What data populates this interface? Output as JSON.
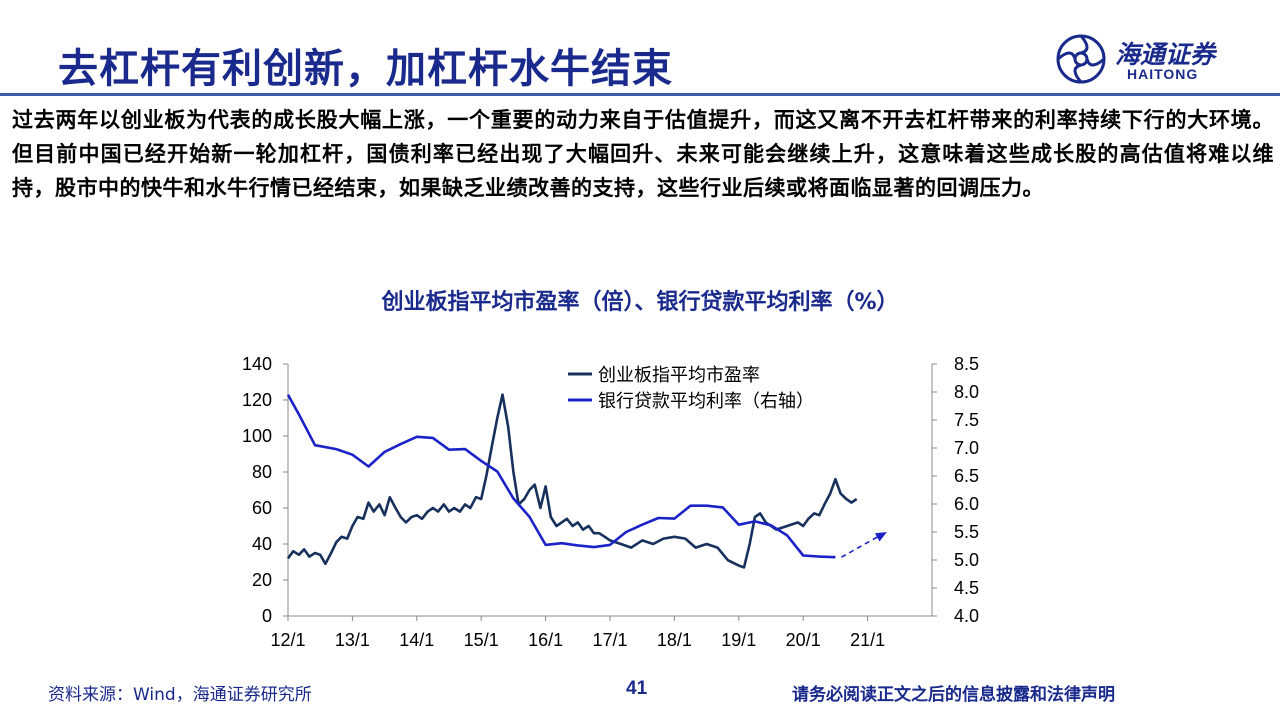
{
  "slide": {
    "title": "去杠杆有利创新，加杠杆水牛结束",
    "paragraph": "过去两年以创业板为代表的成长股大幅上涨，一个重要的动力来自于估值提升，而这又离不开去杠杆带来的利率持续下行的大环境。但目前中国已经开始新一轮加杠杆，国债利率已经出现了大幅回升、未来可能会继续上升，这意味着这些成长股的高估值将难以维持，股市中的快牛和水牛行情已经结束，如果缺乏业绩改善的支持，这些行业后续或将面临显著的回调压力。"
  },
  "logo": {
    "name_cn": "海通证券",
    "name_en": "HAITONG"
  },
  "footer": {
    "source": "资料来源：Wind，海通证券研究所",
    "page_number": "41",
    "disclaimer": "请务必阅读正文之后的信息披露和法律声明"
  },
  "colors": {
    "brand": "#1a2a8c",
    "pe_line": "#17305c",
    "rate_line": "#1b23c8"
  },
  "chart_data": {
    "type": "line",
    "title": "创业板指平均市盈率（倍）、银行贷款平均利率（%）",
    "x_ticks": [
      "12/1",
      "13/1",
      "14/1",
      "15/1",
      "16/1",
      "17/1",
      "18/1",
      "19/1",
      "20/1",
      "21/1"
    ],
    "x_range": [
      2012.0,
      2021.0
    ],
    "y_left": {
      "min": 0,
      "max": 140,
      "ticks": [
        "0",
        "20",
        "40",
        "60",
        "80",
        "100",
        "120",
        "140"
      ]
    },
    "y_right": {
      "min": 4.0,
      "max": 8.5,
      "ticks": [
        "4.0",
        "4.5",
        "5.0",
        "5.5",
        "6.0",
        "6.5",
        "7.0",
        "7.5",
        "8.0",
        "8.5"
      ]
    },
    "legend_position": "top-center",
    "series": [
      {
        "name": "创业板指平均市盈率",
        "axis": "left",
        "x": [
          2012.0,
          2012.08,
          2012.17,
          2012.25,
          2012.33,
          2012.42,
          2012.5,
          2012.58,
          2012.67,
          2012.75,
          2012.83,
          2012.92,
          2013.0,
          2013.08,
          2013.17,
          2013.25,
          2013.33,
          2013.42,
          2013.5,
          2013.58,
          2013.67,
          2013.75,
          2013.83,
          2013.92,
          2014.0,
          2014.08,
          2014.17,
          2014.25,
          2014.33,
          2014.42,
          2014.5,
          2014.58,
          2014.67,
          2014.75,
          2014.83,
          2014.92,
          2015.0,
          2015.08,
          2015.17,
          2015.25,
          2015.33,
          2015.42,
          2015.5,
          2015.58,
          2015.67,
          2015.75,
          2015.83,
          2015.92,
          2016.0,
          2016.08,
          2016.17,
          2016.25,
          2016.33,
          2016.42,
          2016.5,
          2016.58,
          2016.67,
          2016.75,
          2016.83,
          2016.92,
          2017.0,
          2017.17,
          2017.33,
          2017.5,
          2017.67,
          2017.83,
          2018.0,
          2018.17,
          2018.33,
          2018.5,
          2018.67,
          2018.83,
          2019.0,
          2019.08,
          2019.17,
          2019.25,
          2019.33,
          2019.42,
          2019.58,
          2019.75,
          2019.92,
          2020.0,
          2020.08,
          2020.17,
          2020.25,
          2020.33,
          2020.42,
          2020.5,
          2020.58,
          2020.67,
          2020.75,
          2020.83
        ],
        "values": [
          32,
          36,
          34,
          37,
          33,
          35,
          34,
          29,
          35,
          41,
          44,
          43,
          50,
          55,
          54,
          63,
          58,
          62,
          56,
          66,
          60,
          55,
          52,
          55,
          56,
          54,
          58,
          60,
          58,
          62,
          58,
          60,
          58,
          62,
          60,
          66,
          65,
          78,
          95,
          110,
          123,
          105,
          80,
          62,
          65,
          70,
          73,
          60,
          72,
          55,
          50,
          52,
          54,
          50,
          52,
          48,
          50,
          46,
          46,
          44,
          42,
          40,
          38,
          42,
          40,
          43,
          44,
          43,
          38,
          40,
          38,
          31,
          28,
          27,
          40,
          55,
          57,
          52,
          48,
          50,
          52,
          50,
          54,
          57,
          56,
          62,
          68,
          76,
          68,
          65,
          63,
          65
        ]
      },
      {
        "name": "银行贷款平均利率（右轴）",
        "axis": "right",
        "x": [
          2012.0,
          2012.17,
          2012.42,
          2012.75,
          2013.0,
          2013.25,
          2013.5,
          2013.75,
          2014.0,
          2014.25,
          2014.5,
          2014.75,
          2015.0,
          2015.25,
          2015.5,
          2015.75,
          2016.0,
          2016.25,
          2016.5,
          2016.75,
          2017.0,
          2017.25,
          2017.5,
          2017.75,
          2018.0,
          2018.25,
          2018.5,
          2018.75,
          2019.0,
          2019.25,
          2019.5,
          2019.75,
          2020.0,
          2020.25,
          2020.5
        ],
        "values": [
          7.95,
          7.6,
          7.05,
          6.98,
          6.88,
          6.67,
          6.93,
          7.07,
          7.2,
          7.18,
          6.97,
          6.98,
          6.77,
          6.58,
          6.1,
          5.77,
          5.27,
          5.3,
          5.26,
          5.23,
          5.27,
          5.5,
          5.63,
          5.75,
          5.74,
          5.97,
          5.97,
          5.94,
          5.63,
          5.69,
          5.62,
          5.44,
          5.08,
          5.06,
          5.05
        ]
      }
    ],
    "annotation": {
      "type": "dashed-arrow",
      "x": [
        2020.5,
        2021.3
      ],
      "values_right_axis": [
        5.05,
        5.5
      ]
    }
  }
}
